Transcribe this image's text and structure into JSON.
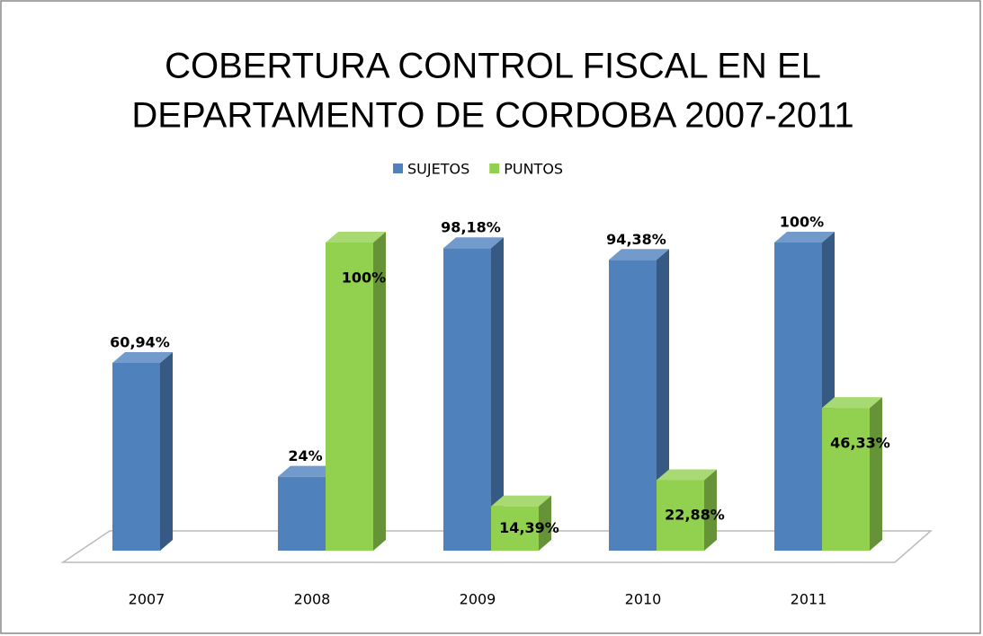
{
  "chart_data": {
    "type": "bar",
    "title": [
      "COBERTURA CONTROL FISCAL EN EL",
      "DEPARTAMENTO DE CORDOBA 2007-2011"
    ],
    "categories": [
      "2007",
      "2008",
      "2009",
      "2010",
      "2011"
    ],
    "series": [
      {
        "name": "SUJETOS",
        "color": "#4f81bd",
        "values": [
          60.94,
          24,
          98.18,
          94.38,
          100
        ],
        "value_labels": [
          "60,94%",
          "24%",
          "98,18%",
          "94,38%",
          "100%"
        ]
      },
      {
        "name": "PUNTOS",
        "color": "#92d050",
        "values": [
          null,
          100,
          14.39,
          22.88,
          46.33
        ],
        "value_labels": [
          null,
          "100%",
          "14,39%",
          "22,88%",
          "46,33%"
        ]
      }
    ],
    "legend": "top"
  }
}
